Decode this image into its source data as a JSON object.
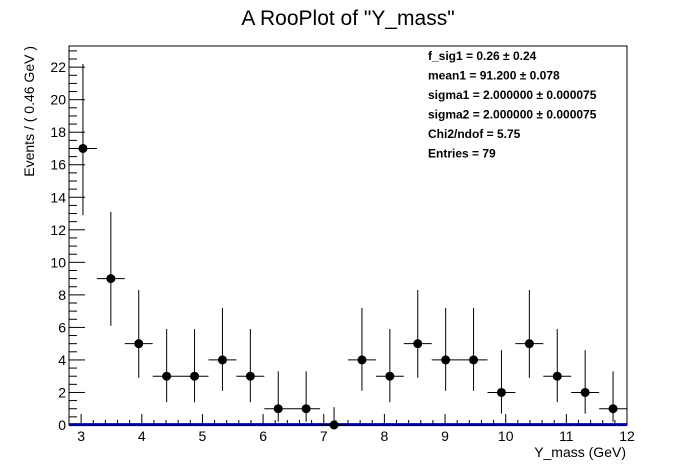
{
  "chart_data": {
    "type": "scatter",
    "title": "A RooPlot of \"Y_mass\"",
    "xlabel": "Y_mass (GeV)",
    "ylabel": "Events / ( 0.46 GeV )",
    "xlim": [
      2.8,
      12.0
    ],
    "ylim": [
      0,
      23.3
    ],
    "xticks": [
      3,
      4,
      5,
      6,
      7,
      8,
      9,
      10,
      11,
      12
    ],
    "yticks": [
      0,
      2,
      4,
      6,
      8,
      10,
      12,
      14,
      16,
      18,
      20,
      22
    ],
    "bin_half_width": 0.23,
    "grid": false,
    "points": [
      {
        "x": 3.03,
        "y": 17,
        "lo": 12.9,
        "hi": 22.2
      },
      {
        "x": 3.49,
        "y": 9,
        "lo": 6.1,
        "hi": 13.1
      },
      {
        "x": 3.95,
        "y": 5,
        "lo": 2.9,
        "hi": 8.3
      },
      {
        "x": 4.41,
        "y": 3,
        "lo": 1.4,
        "hi": 5.9
      },
      {
        "x": 4.87,
        "y": 3,
        "lo": 1.4,
        "hi": 5.9
      },
      {
        "x": 5.33,
        "y": 4,
        "lo": 2.1,
        "hi": 7.2
      },
      {
        "x": 5.79,
        "y": 3,
        "lo": 1.4,
        "hi": 5.9
      },
      {
        "x": 6.25,
        "y": 1,
        "lo": 0.2,
        "hi": 3.3
      },
      {
        "x": 6.71,
        "y": 1,
        "lo": 0.2,
        "hi": 3.3
      },
      {
        "x": 7.17,
        "y": 0,
        "lo": 0,
        "hi": 1.1
      },
      {
        "x": 7.63,
        "y": 4,
        "lo": 2.1,
        "hi": 7.2
      },
      {
        "x": 8.09,
        "y": 3,
        "lo": 1.4,
        "hi": 5.9
      },
      {
        "x": 8.55,
        "y": 5,
        "lo": 2.9,
        "hi": 8.3
      },
      {
        "x": 9.01,
        "y": 4,
        "lo": 2.1,
        "hi": 7.2
      },
      {
        "x": 9.47,
        "y": 4,
        "lo": 2.1,
        "hi": 7.2
      },
      {
        "x": 9.93,
        "y": 2,
        "lo": 0.7,
        "hi": 4.6
      },
      {
        "x": 10.39,
        "y": 5,
        "lo": 2.9,
        "hi": 8.3
      },
      {
        "x": 10.85,
        "y": 3,
        "lo": 1.4,
        "hi": 5.9
      },
      {
        "x": 11.31,
        "y": 2,
        "lo": 0.7,
        "hi": 4.6
      },
      {
        "x": 11.77,
        "y": 1,
        "lo": 0.2,
        "hi": 3.3
      }
    ],
    "fit_curve": {
      "y": 0.02,
      "color": "#000099"
    },
    "stats": [
      "f_sig1 =  0.26 ± 0.24",
      "mean1 =  91.200 ± 0.078",
      "sigma1 =  2.000000 ± 0.000075",
      "sigma2 =  2.000000 ± 0.000075",
      "Chi2/ndof =  5.75",
      "Entries =  79"
    ]
  }
}
